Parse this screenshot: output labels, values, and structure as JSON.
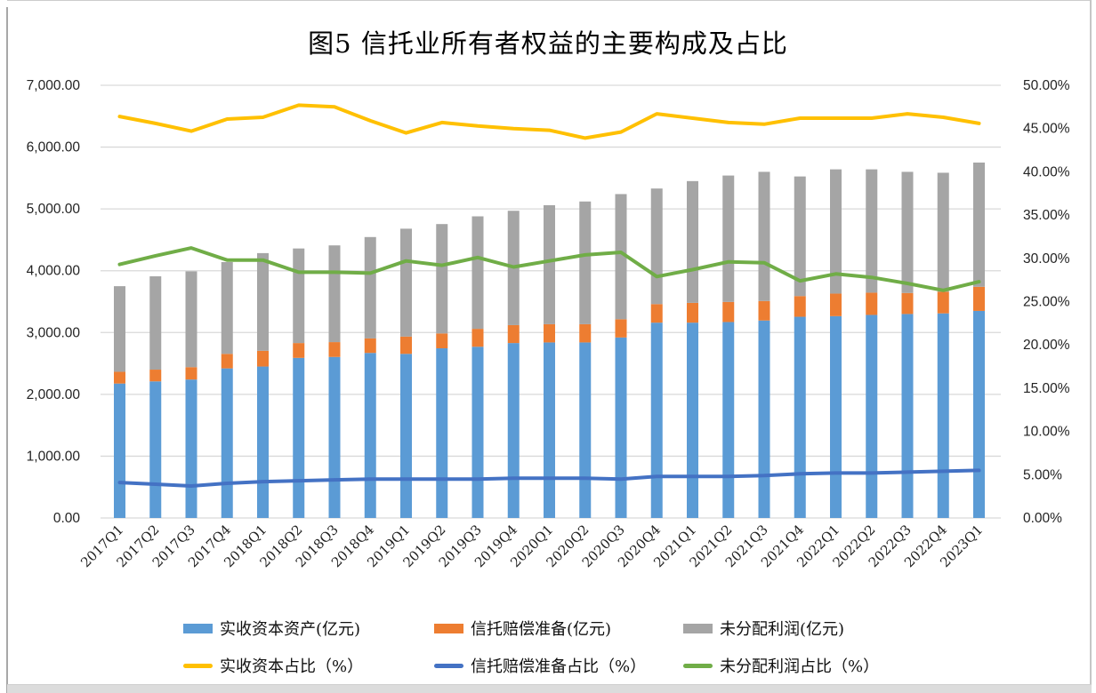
{
  "page": {
    "title": "图5 信托业所有者权益的主要构成及占比"
  },
  "chart_data": {
    "type": "combo-stacked-bar-line",
    "title": "图5 信托业所有者权益的主要构成及占比",
    "categories": [
      "2017Q1",
      "2017Q2",
      "2017Q3",
      "2017Q4",
      "2018Q1",
      "2018Q2",
      "2018Q3",
      "2018Q4",
      "2019Q1",
      "2019Q2",
      "2019Q3",
      "2019Q4",
      "2020Q1",
      "2020Q2",
      "2020Q3",
      "2020Q4",
      "2021Q1",
      "2021Q2",
      "2021Q3",
      "2021Q4",
      "2022Q1",
      "2022Q2",
      "2022Q3",
      "2022Q4",
      "2023Q1"
    ],
    "stacked": true,
    "grid": "horizontal",
    "legend_position": "bottom",
    "bar_series": [
      {
        "key": "paid-in-capital",
        "name": "实收资本资产(亿元)",
        "color": "#5B9BD5",
        "axis": "left",
        "values": [
          2175,
          2210,
          2240,
          2420,
          2450,
          2590,
          2605,
          2670,
          2655,
          2745,
          2770,
          2830,
          2840,
          2840,
          2920,
          3160,
          3160,
          3170,
          3195,
          3255,
          3265,
          3285,
          3300,
          3310,
          3350
        ]
      },
      {
        "key": "trust-compensation-reserve",
        "name": "信托赔偿准备(亿元)",
        "color": "#ED7D31",
        "axis": "left",
        "values": [
          190,
          190,
          200,
          235,
          255,
          240,
          240,
          235,
          280,
          240,
          290,
          290,
          295,
          295,
          295,
          300,
          320,
          325,
          315,
          335,
          365,
          360,
          340,
          350,
          390
        ]
      },
      {
        "key": "undistributed-profit",
        "name": "未分配利润(亿元)",
        "color": "#A5A5A5",
        "axis": "left",
        "values": [
          1385,
          1510,
          1550,
          1485,
          1580,
          1530,
          1565,
          1640,
          1745,
          1770,
          1820,
          1850,
          1925,
          1985,
          2025,
          1870,
          1970,
          2045,
          2090,
          1935,
          2010,
          1995,
          1960,
          1925,
          2010
        ]
      }
    ],
    "line_series": [
      {
        "key": "paid-in-capital-ratio",
        "name": "实收资本占比（%）",
        "color": "#FFC000",
        "axis": "right",
        "values": [
          46.4,
          45.6,
          44.7,
          46.1,
          46.3,
          47.7,
          47.5,
          45.9,
          44.5,
          45.7,
          45.3,
          45.0,
          44.8,
          43.9,
          44.6,
          46.7,
          46.2,
          45.7,
          45.5,
          46.2,
          46.2,
          46.2,
          46.7,
          46.3,
          45.6
        ]
      },
      {
        "key": "trust-compensation-reserve-ratio",
        "name": "信托赔偿准备占比（%）",
        "color": "#4472C4",
        "axis": "right",
        "values": [
          4.1,
          3.9,
          3.7,
          4.0,
          4.2,
          4.3,
          4.4,
          4.5,
          4.5,
          4.5,
          4.5,
          4.6,
          4.6,
          4.6,
          4.5,
          4.8,
          4.8,
          4.8,
          4.9,
          5.1,
          5.2,
          5.2,
          5.3,
          5.4,
          5.5
        ]
      },
      {
        "key": "undistributed-profit-ratio",
        "name": "未分配利润占比（%）",
        "color": "#70AD47",
        "axis": "right",
        "values": [
          29.3,
          30.3,
          31.2,
          29.8,
          29.8,
          28.4,
          28.4,
          28.3,
          29.7,
          29.2,
          30.1,
          29.0,
          29.7,
          30.4,
          30.7,
          27.9,
          28.7,
          29.6,
          29.5,
          27.4,
          28.2,
          27.8,
          27.1,
          26.3,
          27.3
        ]
      }
    ],
    "left_axis": {
      "min": 0,
      "max": 7000,
      "major_unit": 1000,
      "ticks": [
        "7,000.00",
        "6,000.00",
        "5,000.00",
        "4,000.00",
        "3,000.00",
        "2,000.00",
        "1,000.00",
        "0.00"
      ]
    },
    "right_axis": {
      "min": 0,
      "max": 50,
      "major_unit": 5,
      "ticks": [
        "50.00%",
        "45.00%",
        "40.00%",
        "35.00%",
        "30.00%",
        "25.00%",
        "20.00%",
        "15.00%",
        "10.00%",
        "5.00%",
        "0.00%"
      ]
    },
    "colors": {
      "gridline": "#D9D9D9",
      "axis_text": "#232323",
      "category_text": "#1f1f1f"
    }
  }
}
